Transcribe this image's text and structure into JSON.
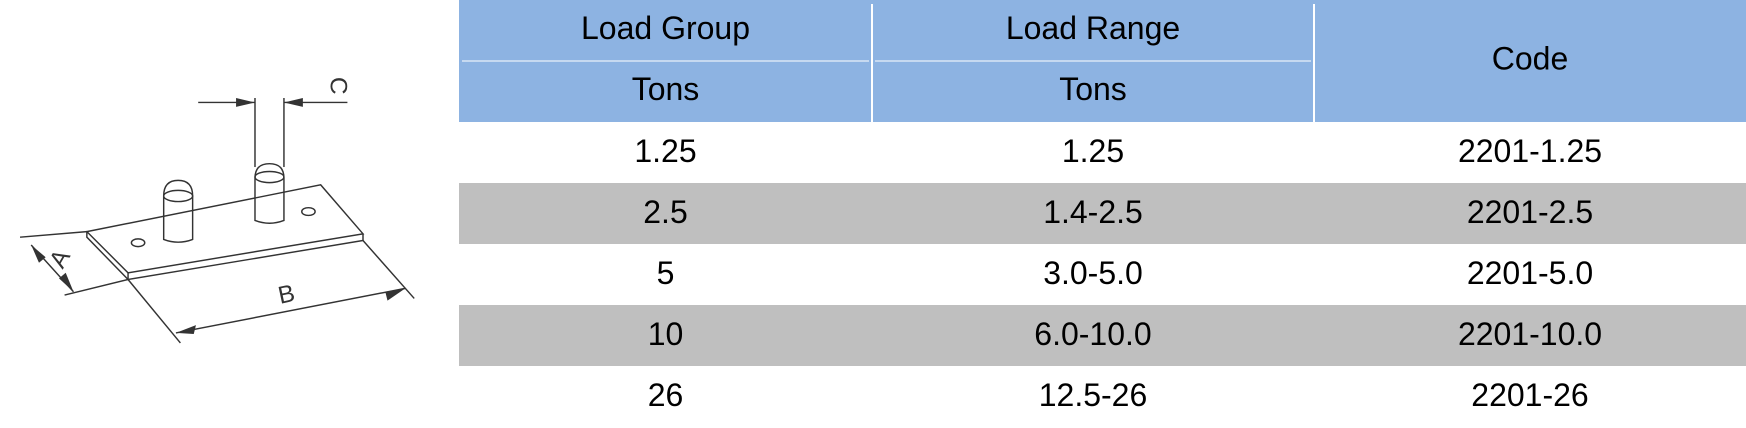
{
  "drawing": {
    "labels": [
      "A",
      "B",
      "C"
    ]
  },
  "table": {
    "header": [
      [
        "Load Group",
        "Tons"
      ],
      [
        "Load Range",
        "Tons"
      ],
      [
        "Code"
      ]
    ],
    "rows": [
      [
        "1.25",
        "1.25",
        "2201-1.25"
      ],
      [
        "2.5",
        "1.4-2.5",
        "2201-2.5"
      ],
      [
        "5",
        "3.0-5.0",
        "2201-5.0"
      ],
      [
        "10",
        "6.0-10.0",
        "2201-10.0"
      ],
      [
        "26",
        "12.5-26",
        "2201-26"
      ]
    ]
  }
}
